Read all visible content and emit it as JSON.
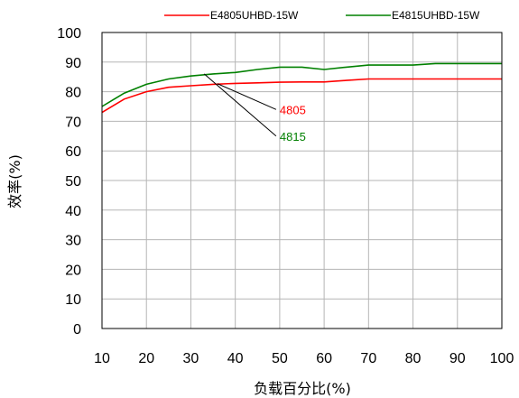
{
  "chart_data": {
    "type": "line",
    "xlabel": "负载百分比(%)",
    "ylabel": "效率(%)",
    "xlim": [
      10,
      100
    ],
    "ylim": [
      0,
      100
    ],
    "xticks": [
      10,
      20,
      30,
      40,
      50,
      60,
      70,
      80,
      90,
      100
    ],
    "yticks": [
      0,
      10,
      20,
      30,
      40,
      50,
      60,
      70,
      80,
      90,
      100
    ],
    "grid": true,
    "legend_position": "top",
    "series": [
      {
        "name": "E4805UHBD-15W",
        "color": "#ff0000",
        "x": [
          10,
          15,
          20,
          25,
          30,
          35,
          40,
          45,
          50,
          55,
          60,
          65,
          70,
          75,
          80,
          85,
          90,
          95,
          100
        ],
        "y": [
          73,
          77.5,
          80,
          81.5,
          82,
          82.5,
          82.8,
          83,
          83.2,
          83.3,
          83.3,
          83.8,
          84.3,
          84.3,
          84.3,
          84.3,
          84.3,
          84.3,
          84.3
        ]
      },
      {
        "name": "E4815UHBD-15W",
        "color": "#008000",
        "x": [
          10,
          15,
          20,
          25,
          30,
          35,
          40,
          45,
          50,
          55,
          60,
          65,
          70,
          75,
          80,
          85,
          90,
          95,
          100
        ],
        "y": [
          75,
          79.5,
          82.5,
          84.3,
          85.3,
          86,
          86.5,
          87.5,
          88.3,
          88.3,
          87.5,
          88.3,
          89,
          89,
          89,
          89.5,
          89.5,
          89.5,
          89.5
        ]
      }
    ],
    "annotations": [
      {
        "text": "4805",
        "color": "#ff0000",
        "from": [
          36,
          82.7
        ],
        "to": [
          50,
          74
        ]
      },
      {
        "text": "4815",
        "color": "#008000",
        "from": [
          33,
          86
        ],
        "to": [
          50,
          65
        ]
      }
    ]
  }
}
